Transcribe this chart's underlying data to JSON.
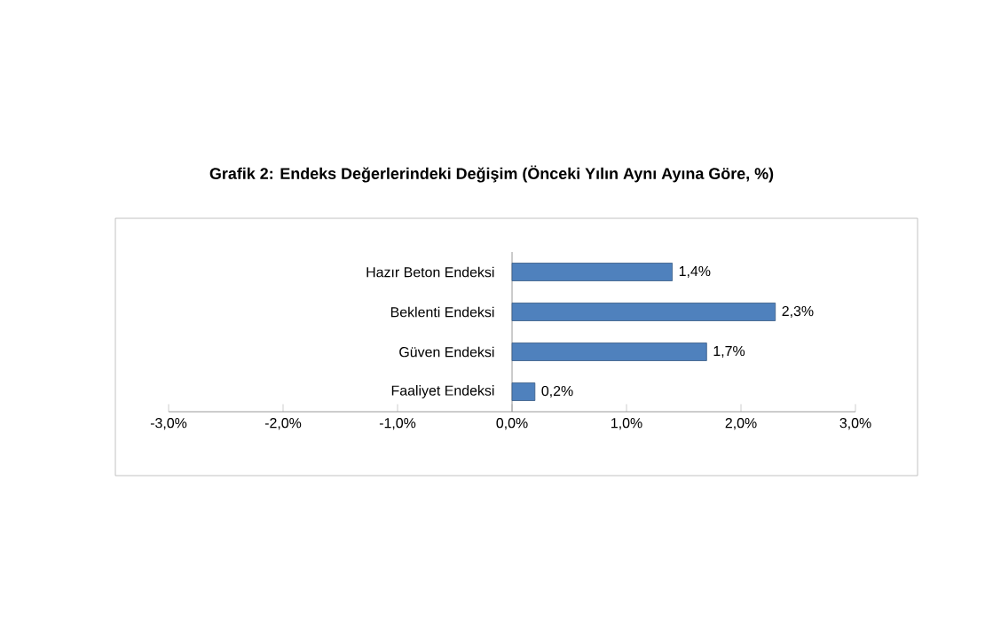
{
  "chart_data": {
    "type": "bar",
    "orientation": "horizontal",
    "title": "Grafik 2: Endeks Değerlerindeki Değişim (Önceki Yılın Aynı Ayına Göre, %)",
    "categories": [
      "Hazır Beton Endeksi",
      "Beklenti Endeksi",
      "Güven Endeksi",
      "Faaliyet Endeksi"
    ],
    "values": [
      1.4,
      2.3,
      1.7,
      0.2
    ],
    "value_labels": [
      "1,4%",
      "2,3%",
      "1,7%",
      "0,2%"
    ],
    "color": "#4f81bd",
    "xlim": [
      -3,
      3
    ],
    "xticks": [
      {
        "value": -3,
        "label": "-3,0%"
      },
      {
        "value": -2,
        "label": "-2,0%"
      },
      {
        "value": -1,
        "label": "-1,0%"
      },
      {
        "value": 0,
        "label": "0,0%"
      },
      {
        "value": 1,
        "label": "1,0%"
      },
      {
        "value": 2,
        "label": "2,0%"
      },
      {
        "value": 3,
        "label": "3,0%"
      }
    ],
    "xlabel": null
  }
}
